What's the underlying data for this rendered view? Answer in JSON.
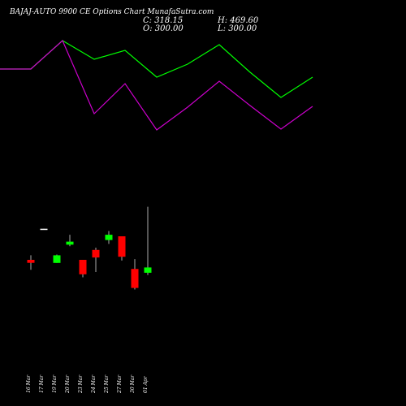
{
  "header": {
    "title": "BAJAJ-AUTO 9900  CE Options  Chart MunafaSutra.com",
    "close": "C: 318.15",
    "open": "O: 300.00",
    "high": "H: 469.60",
    "low": "L: 300.00"
  },
  "chart_data": [
    {
      "type": "line",
      "name": "upper-line",
      "color": "#00ff00",
      "points": [
        100,
        100,
        135,
        112,
        123,
        90,
        106,
        130,
        96,
        65,
        90
      ],
      "range": [
        0,
        160
      ]
    },
    {
      "type": "line",
      "name": "lower-line",
      "color": "#cc00cc",
      "points": [
        100,
        100,
        135,
        45,
        82,
        25,
        53,
        85,
        55,
        26,
        54
      ],
      "range": [
        0,
        160
      ]
    },
    {
      "type": "candlestick",
      "up_color": "#00ff00",
      "down_color": "#ff0000",
      "categories": [
        "16 Mar",
        "17 Mar",
        "19 Mar",
        "20 Mar",
        "23 Mar",
        "24 Mar",
        "25 Mar",
        "27 Mar",
        "30 Mar",
        "01 Apr"
      ],
      "candles": [
        {
          "o": 300,
          "h": 306,
          "l": 287,
          "c": 296
        },
        {
          "o": 341,
          "h": 341,
          "l": 340,
          "c": 340
        },
        {
          "o": 296,
          "h": 307,
          "l": 296,
          "c": 306
        },
        {
          "o": 320,
          "h": 333,
          "l": 318,
          "c": 324
        },
        {
          "o": 300,
          "h": 300,
          "l": 277,
          "c": 281
        },
        {
          "o": 313,
          "h": 316,
          "l": 284,
          "c": 303
        },
        {
          "o": 326,
          "h": 338,
          "l": 321,
          "c": 333
        },
        {
          "o": 331,
          "h": 331,
          "l": 299,
          "c": 304
        },
        {
          "o": 288,
          "h": 301,
          "l": 261,
          "c": 263
        },
        {
          "o": 283,
          "h": 370,
          "l": 280,
          "c": 290
        }
      ]
    }
  ]
}
